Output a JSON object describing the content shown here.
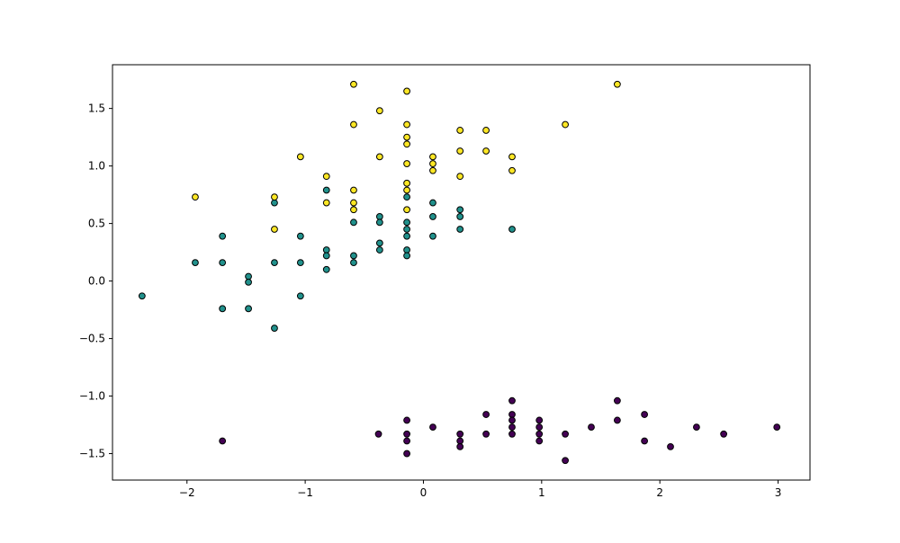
{
  "chart_data": {
    "type": "scatter",
    "title": "",
    "xlabel": "",
    "ylabel": "",
    "xlim": [
      -2.63,
      3.27
    ],
    "ylim": [
      -1.73,
      1.88
    ],
    "grid": false,
    "xticks": [
      -2,
      -1,
      0,
      1,
      2,
      3
    ],
    "yticks": [
      -1.5,
      -1.0,
      -0.5,
      0.0,
      0.5,
      1.0,
      1.5
    ],
    "xtick_labels": [
      "−2",
      "−1",
      "0",
      "1",
      "2",
      "3"
    ],
    "ytick_labels": [
      "−1.5",
      "−1.0",
      "−0.5",
      "0.0",
      "0.5",
      "1.0",
      "1.5"
    ],
    "marker_edge_color": "#000000",
    "series": [
      {
        "color": "#440154",
        "points": [
          [
            -1.7,
            -1.39
          ],
          [
            -0.38,
            -1.33
          ],
          [
            -0.14,
            -1.21
          ],
          [
            -0.14,
            -1.33
          ],
          [
            -0.14,
            -1.39
          ],
          [
            -0.14,
            -1.5
          ],
          [
            0.08,
            -1.27
          ],
          [
            0.31,
            -1.33
          ],
          [
            0.31,
            -1.39
          ],
          [
            0.31,
            -1.44
          ],
          [
            0.53,
            -1.16
          ],
          [
            0.53,
            -1.33
          ],
          [
            0.75,
            -1.04
          ],
          [
            0.75,
            -1.16
          ],
          [
            0.75,
            -1.21
          ],
          [
            0.75,
            -1.27
          ],
          [
            0.75,
            -1.33
          ],
          [
            0.98,
            -1.21
          ],
          [
            0.98,
            -1.27
          ],
          [
            0.98,
            -1.33
          ],
          [
            0.98,
            -1.39
          ],
          [
            1.2,
            -1.33
          ],
          [
            1.2,
            -1.56
          ],
          [
            1.42,
            -1.27
          ],
          [
            1.64,
            -1.04
          ],
          [
            1.64,
            -1.21
          ],
          [
            1.87,
            -1.16
          ],
          [
            1.87,
            -1.39
          ],
          [
            2.09,
            -1.44
          ],
          [
            2.31,
            -1.27
          ],
          [
            2.54,
            -1.33
          ],
          [
            2.99,
            -1.27
          ]
        ]
      },
      {
        "color": "#21918c",
        "points": [
          [
            -2.38,
            -0.13
          ],
          [
            -1.93,
            0.16
          ],
          [
            -1.7,
            0.39
          ],
          [
            -1.7,
            0.16
          ],
          [
            -1.7,
            -0.24
          ],
          [
            -1.48,
            0.04
          ],
          [
            -1.48,
            -0.01
          ],
          [
            -1.48,
            -0.24
          ],
          [
            -1.26,
            0.68
          ],
          [
            -1.26,
            0.16
          ],
          [
            -1.26,
            -0.41
          ],
          [
            -1.04,
            0.39
          ],
          [
            -1.04,
            0.16
          ],
          [
            -1.04,
            -0.13
          ],
          [
            -0.82,
            0.79
          ],
          [
            -0.82,
            0.27
          ],
          [
            -0.82,
            0.22
          ],
          [
            -0.82,
            0.1
          ],
          [
            -0.59,
            0.51
          ],
          [
            -0.59,
            0.22
          ],
          [
            -0.59,
            0.16
          ],
          [
            -0.37,
            0.56
          ],
          [
            -0.37,
            0.51
          ],
          [
            -0.37,
            0.33
          ],
          [
            -0.37,
            0.27
          ],
          [
            -0.14,
            0.73
          ],
          [
            -0.14,
            0.51
          ],
          [
            -0.14,
            0.45
          ],
          [
            -0.14,
            0.39
          ],
          [
            -0.14,
            0.27
          ],
          [
            -0.14,
            0.22
          ],
          [
            0.08,
            0.68
          ],
          [
            0.08,
            0.56
          ],
          [
            0.08,
            0.39
          ],
          [
            0.31,
            0.62
          ],
          [
            0.31,
            0.56
          ],
          [
            0.31,
            0.45
          ],
          [
            0.75,
            0.45
          ]
        ]
      },
      {
        "color": "#fde725",
        "points": [
          [
            -1.93,
            0.73
          ],
          [
            -1.26,
            0.73
          ],
          [
            -1.26,
            0.45
          ],
          [
            -1.04,
            1.08
          ],
          [
            -0.82,
            0.91
          ],
          [
            -0.82,
            0.68
          ],
          [
            -0.59,
            1.71
          ],
          [
            -0.59,
            1.36
          ],
          [
            -0.59,
            0.79
          ],
          [
            -0.59,
            0.68
          ],
          [
            -0.59,
            0.62
          ],
          [
            -0.37,
            1.48
          ],
          [
            -0.37,
            1.08
          ],
          [
            -0.14,
            1.65
          ],
          [
            -0.14,
            1.36
          ],
          [
            -0.14,
            1.25
          ],
          [
            -0.14,
            1.19
          ],
          [
            -0.14,
            1.02
          ],
          [
            -0.14,
            0.85
          ],
          [
            -0.14,
            0.79
          ],
          [
            -0.14,
            0.62
          ],
          [
            0.08,
            1.08
          ],
          [
            0.08,
            1.02
          ],
          [
            0.08,
            0.96
          ],
          [
            0.31,
            1.31
          ],
          [
            0.31,
            1.13
          ],
          [
            0.31,
            0.91
          ],
          [
            0.53,
            1.31
          ],
          [
            0.53,
            1.13
          ],
          [
            0.75,
            1.08
          ],
          [
            0.75,
            0.96
          ],
          [
            1.2,
            1.36
          ],
          [
            1.64,
            1.71
          ]
        ]
      }
    ]
  }
}
